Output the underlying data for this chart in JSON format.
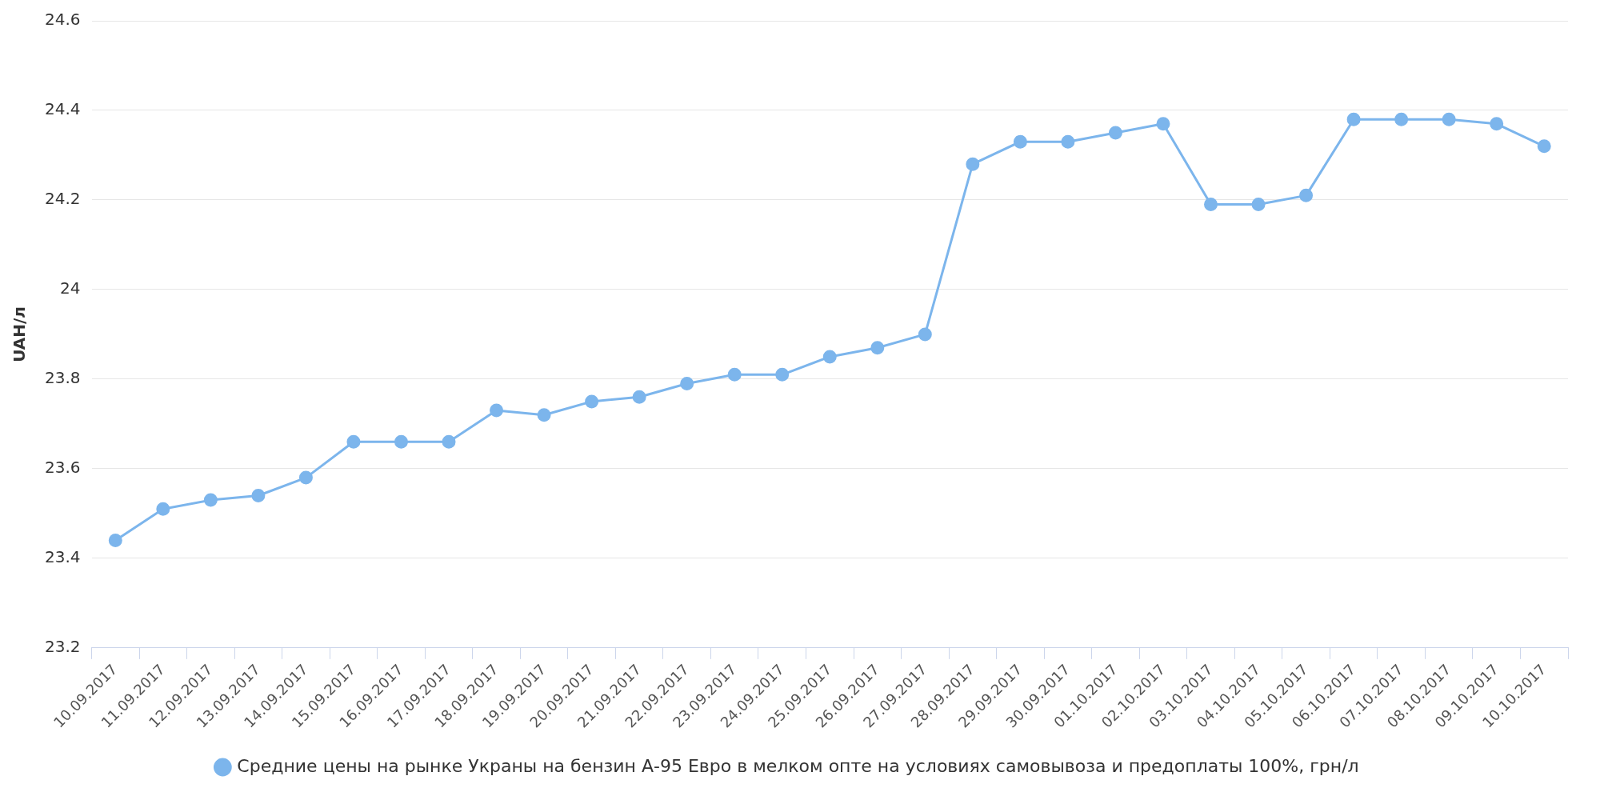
{
  "chart_data": {
    "type": "line",
    "ylabel": "UAH/л",
    "categories": [
      "10.09.2017",
      "11.09.2017",
      "12.09.2017",
      "13.09.2017",
      "14.09.2017",
      "15.09.2017",
      "16.09.2017",
      "17.09.2017",
      "18.09.2017",
      "19.09.2017",
      "20.09.2017",
      "21.09.2017",
      "22.09.2017",
      "23.09.2017",
      "24.09.2017",
      "25.09.2017",
      "26.09.2017",
      "27.09.2017",
      "28.09.2017",
      "29.09.2017",
      "30.09.2017",
      "01.10.2017",
      "02.10.2017",
      "03.10.2017",
      "04.10.2017",
      "05.10.2017",
      "06.10.2017",
      "07.10.2017",
      "08.10.2017",
      "09.10.2017",
      "10.10.2017"
    ],
    "series": [
      {
        "name": "Средние цены на рынке Украны на бензин А-95 Евро в мелком опте на условиях самовывоза и предоплаты 100%, грн/л",
        "color": "#7cb5ec",
        "values": [
          23.44,
          23.51,
          23.53,
          23.54,
          23.58,
          23.66,
          23.66,
          23.66,
          23.73,
          23.72,
          23.75,
          23.76,
          23.79,
          23.81,
          23.81,
          23.85,
          23.87,
          23.9,
          24.28,
          24.33,
          24.33,
          24.35,
          24.37,
          24.19,
          24.19,
          24.21,
          24.38,
          24.38,
          24.38,
          24.37,
          24.32
        ]
      }
    ],
    "ylim": [
      23.2,
      24.6
    ],
    "yticks": [
      23.2,
      23.4,
      23.6,
      23.8,
      24,
      24.2,
      24.4,
      24.6
    ],
    "grid": "y",
    "legend": "bottom",
    "marker": "circle",
    "line_style": "solid"
  }
}
